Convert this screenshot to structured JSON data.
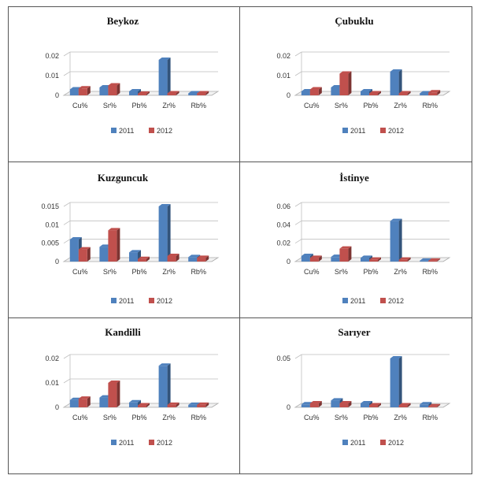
{
  "colors": {
    "s2011": "#4F81BD",
    "s2012": "#C0504D"
  },
  "chart_data": [
    {
      "type": "bar",
      "title": "Beykoz",
      "categories": [
        "Cu%",
        "Sr%",
        "Pb%",
        "Zr%",
        "Rb%"
      ],
      "series": [
        {
          "name": "2011",
          "values": [
            0.003,
            0.004,
            0.002,
            0.018,
            0.001
          ]
        },
        {
          "name": "2012",
          "values": [
            0.0035,
            0.005,
            0.0008,
            0.001,
            0.001
          ]
        }
      ],
      "yticks": [
        "0",
        "0.01",
        "0.02"
      ],
      "ylim": [
        0,
        0.02
      ],
      "legend": "bottom"
    },
    {
      "type": "bar",
      "title": "Çubuklu",
      "categories": [
        "Cu%",
        "Sr%",
        "Pb%",
        "Zr%",
        "Rb%"
      ],
      "series": [
        {
          "name": "2011",
          "values": [
            0.002,
            0.004,
            0.002,
            0.012,
            0.001
          ]
        },
        {
          "name": "2012",
          "values": [
            0.003,
            0.011,
            0.001,
            0.001,
            0.0015
          ]
        }
      ],
      "yticks": [
        "0",
        "0.01",
        "0.02"
      ],
      "ylim": [
        0,
        0.02
      ],
      "legend": "bottom"
    },
    {
      "type": "bar",
      "title": "Kuzguncuk",
      "categories": [
        "Cu%",
        "Sr%",
        "Pb%",
        "Zr%",
        "Rb%"
      ],
      "series": [
        {
          "name": "2011",
          "values": [
            0.006,
            0.004,
            0.0025,
            0.015,
            0.0012
          ]
        },
        {
          "name": "2012",
          "values": [
            0.0033,
            0.0085,
            0.0007,
            0.0015,
            0.001
          ]
        }
      ],
      "yticks": [
        "0",
        "0.005",
        "0.01",
        "0.015"
      ],
      "ylim": [
        0,
        0.015
      ],
      "legend": "bottom"
    },
    {
      "type": "bar",
      "title": "İstinye",
      "categories": [
        "Cu%",
        "Sr%",
        "Pb%",
        "Zr%",
        "Rb%"
      ],
      "series": [
        {
          "name": "2011",
          "values": [
            0.006,
            0.005,
            0.004,
            0.044,
            0.001
          ]
        },
        {
          "name": "2012",
          "values": [
            0.004,
            0.014,
            0.002,
            0.002,
            0.001
          ]
        }
      ],
      "yticks": [
        "0",
        "0.02",
        "0.04",
        "0.06"
      ],
      "ylim": [
        0,
        0.06
      ],
      "legend": "bottom"
    },
    {
      "type": "bar",
      "title": "Kandilli",
      "categories": [
        "Cu%",
        "Sr%",
        "Pb%",
        "Zr%",
        "Rb%"
      ],
      "series": [
        {
          "name": "2011",
          "values": [
            0.003,
            0.004,
            0.002,
            0.017,
            0.001
          ]
        },
        {
          "name": "2012",
          "values": [
            0.0035,
            0.01,
            0.0008,
            0.001,
            0.001
          ]
        }
      ],
      "yticks": [
        "0",
        "0.01",
        "0.02"
      ],
      "ylim": [
        0,
        0.02
      ],
      "legend": "bottom"
    },
    {
      "type": "bar",
      "title": "Sarıyer",
      "categories": [
        "Cu%",
        "Sr%",
        "Pb%",
        "Zr%",
        "Rb%"
      ],
      "series": [
        {
          "name": "2011",
          "values": [
            0.003,
            0.007,
            0.004,
            0.05,
            0.003
          ]
        },
        {
          "name": "2012",
          "values": [
            0.004,
            0.004,
            0.002,
            0.002,
            0.001
          ]
        }
      ],
      "yticks": [
        "0",
        "0.05"
      ],
      "ylim": [
        0,
        0.05
      ],
      "legend": "bottom"
    }
  ]
}
